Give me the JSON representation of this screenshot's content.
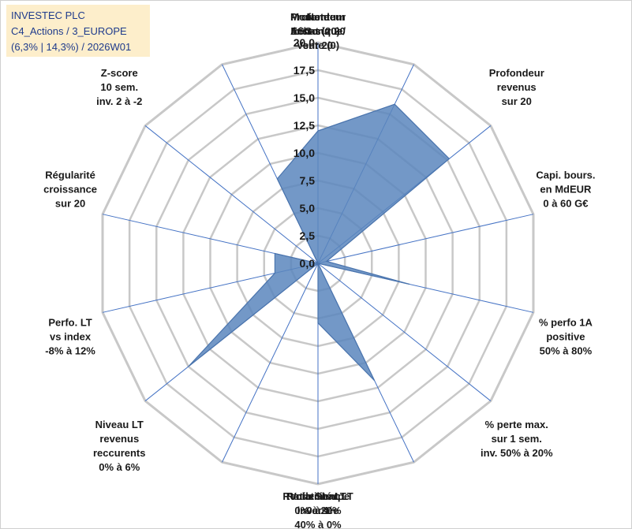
{
  "header": {
    "line1": "INVESTEC PLC",
    "line2": "C4_Actions / 3_EUROPE",
    "line3": "(6,3% | 14,3%) / 2026W01"
  },
  "colors": {
    "fill": "#5b86bd",
    "stroke": "#4a74ad",
    "grid": "#c8c8c8",
    "spoke": "#4472c4",
    "info_bg": "#fdeecb",
    "info_text": "#1f3b8c"
  },
  "chart_data": {
    "type": "radar",
    "title": "",
    "rlim": [
      0,
      20
    ],
    "ticks": [
      "0,0",
      "2,5",
      "5,0",
      "7,5",
      "10,0",
      "12,5",
      "15,0",
      "17,5",
      "20,0"
    ],
    "axes": [
      {
        "label": [
          "Note",
          "ESG sur 20"
        ],
        "value": 12.0
      },
      {
        "label": [
          "Profondeur",
          "historique",
          "sur 20"
        ],
        "value": 16.0
      },
      {
        "label": [
          "Profondeur",
          "revenus",
          "sur 20"
        ],
        "value": 15.2
      },
      {
        "label": [
          "Capi. bours.",
          "en MdEUR",
          "0 à 60 G€"
        ],
        "value": 0.8
      },
      {
        "label": [
          "% perfo 1A",
          "positive",
          "50% à 80%"
        ],
        "value": 8.5
      },
      {
        "label": [
          "% perte max.",
          "sur 1 sem.",
          "inv. 50% à 20%"
        ],
        "value": 0.0
      },
      {
        "label": [
          "Volatilité LT",
          "inversée",
          "40% à 0%"
        ],
        "value": 11.8
      },
      {
        "label": [
          "Ratio Sharpe",
          "0 à 1"
        ],
        "value": 5.4
      },
      {
        "label": [
          "Rendement LT",
          "0% à 20%"
        ],
        "value": 0.0
      },
      {
        "label": [
          "Niveau LT",
          "revenus",
          "reccurents",
          "0% à 6%"
        ],
        "value": 15.0
      },
      {
        "label": [
          "Perfo. LT",
          "vs index",
          "-8% à 12%"
        ],
        "value": 4.0
      },
      {
        "label": [
          "Régularité",
          "croissance",
          "sur 20"
        ],
        "value": 4.0
      },
      {
        "label": [
          "Z-score",
          "10 sem.",
          "inv. 2 à -2"
        ],
        "value": 0.0
      },
      {
        "label": [
          "Momentum",
          "Achat (20) /",
          "Vente (0)"
        ],
        "value": 8.5
      }
    ]
  }
}
